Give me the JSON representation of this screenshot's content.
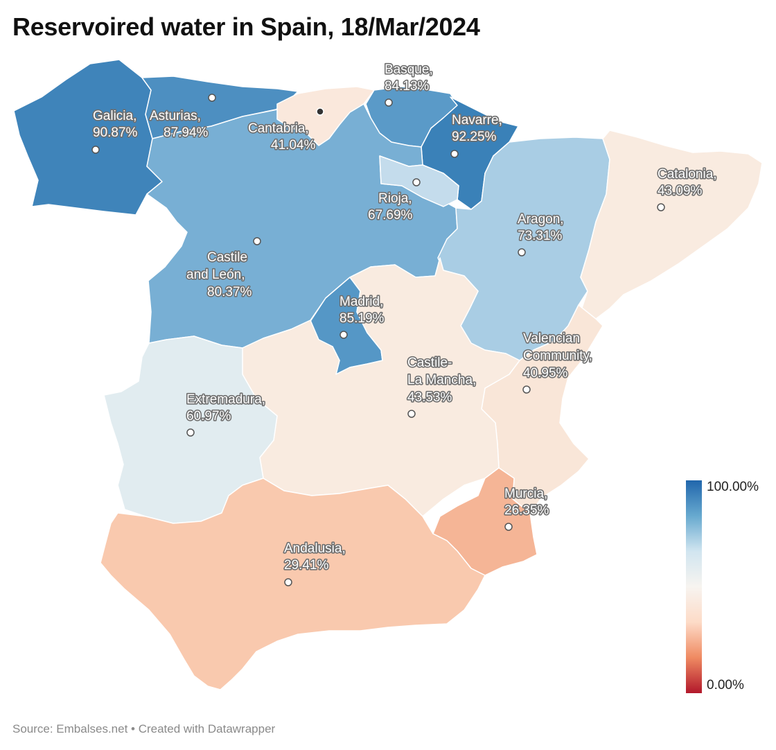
{
  "title": "Reservoired water in Spain, 18/Mar/2024",
  "source": "Source: Embalses.net • Created with Datawrapper",
  "legend": {
    "max_label": "100.00%",
    "min_label": "0.00%",
    "colors": [
      "#2166ac",
      "#67a9cf",
      "#d1e5f0",
      "#f7f4f0",
      "#fddbc7",
      "#ef8a62",
      "#b2182b"
    ]
  },
  "regions": [
    {
      "id": "galicia",
      "name": "Galicia,",
      "value": "90.87%",
      "pct": 90.87,
      "color": "#3f84ba"
    },
    {
      "id": "asturias",
      "name": "Asturias,",
      "value": "87.94%",
      "pct": 87.94,
      "color": "#4d8fc1"
    },
    {
      "id": "cantabria",
      "name": "Cantabria,",
      "value": "41.04%",
      "pct": 41.04,
      "color": "#fae8dc"
    },
    {
      "id": "basque",
      "name": "Basque,",
      "value": "84.13%",
      "pct": 84.13,
      "color": "#5a9ac8"
    },
    {
      "id": "navarre",
      "name": "Navarre,",
      "value": "92.25%",
      "pct": 92.25,
      "color": "#3a81b8"
    },
    {
      "id": "catalonia",
      "name": "Catalonia,",
      "value": "43.09%",
      "pct": 43.09,
      "color": "#f9ebe0"
    },
    {
      "id": "rioja",
      "name": "Rioja,",
      "value": "67.69%",
      "pct": 67.69,
      "color": "#c4dcec"
    },
    {
      "id": "aragon",
      "name": "Aragon,",
      "value": "73.31%",
      "pct": 73.31,
      "color": "#a9cde4"
    },
    {
      "id": "castile_leon",
      "name_lines": [
        "Castile",
        "and León,"
      ],
      "value": "80.37%",
      "pct": 80.37,
      "color": "#78afd4"
    },
    {
      "id": "madrid",
      "name": "Madrid,",
      "value": "85.19%",
      "pct": 85.19,
      "color": "#5597c6"
    },
    {
      "id": "valencia",
      "name_lines": [
        "Valencian",
        "Community,"
      ],
      "value": "40.95%",
      "pct": 40.95,
      "color": "#f9e6d8"
    },
    {
      "id": "castile_mancha",
      "name_lines": [
        "Castile-",
        "La Mancha,"
      ],
      "value": "43.53%",
      "pct": 43.53,
      "color": "#f9ebe0"
    },
    {
      "id": "extremadura",
      "name": "Extremadura,",
      "value": "60.97%",
      "pct": 60.97,
      "color": "#e1ecf0"
    },
    {
      "id": "murcia",
      "name": "Murcia,",
      "value": "26.35%",
      "pct": 26.35,
      "color": "#f5b596"
    },
    {
      "id": "andalusia",
      "name": "Andalusia,",
      "value": "29.41%",
      "pct": 29.41,
      "color": "#f9c9ae"
    }
  ]
}
